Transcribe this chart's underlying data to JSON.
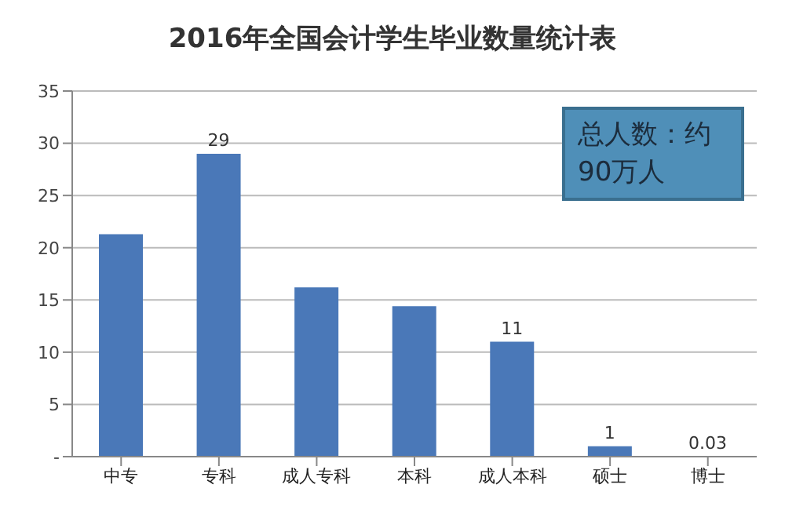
{
  "chart_data": {
    "type": "bar",
    "title": "2016年全国会计学生毕业数量统计表",
    "categories": [
      "中专",
      "专科",
      "成人专科",
      "本科",
      "成人本科",
      "硕士",
      "博士"
    ],
    "values": [
      21.3,
      29,
      16.2,
      14.4,
      11,
      1,
      0.03
    ],
    "value_labels": [
      null,
      "29",
      null,
      null,
      "11",
      "1",
      "0.03"
    ],
    "color": "#4a78b8",
    "ylim": [
      0,
      35
    ],
    "yticks": [
      {
        "value": 0,
        "label": "-"
      },
      5,
      10,
      15,
      20,
      25,
      30,
      35
    ],
    "grid": "y",
    "legend": false,
    "annotations": [
      "总人数：约90万人"
    ]
  }
}
